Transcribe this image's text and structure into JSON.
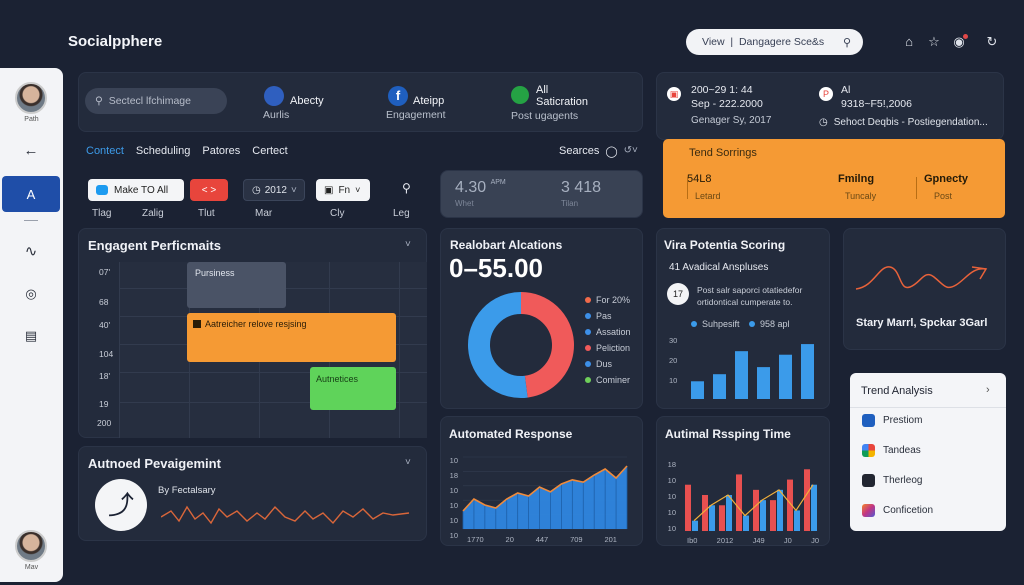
{
  "app": {
    "brand": "Socialpphere"
  },
  "header": {
    "search_text": "View  |  Dangagere Sce&s",
    "icons": [
      "home-icon",
      "star-icon",
      "notification-icon",
      "refresh-icon"
    ]
  },
  "sidebar": {
    "user_top": "Path",
    "user_bottom": "Mav",
    "items": [
      "back-arrow-icon",
      "analytics-icon",
      "wave-icon",
      "broadcast-icon",
      "clipboard-icon"
    ]
  },
  "topbar": {
    "search_placeholder": "Sectecl lfchimage",
    "accounts": [
      {
        "line1": "Abecty",
        "line2": "Aurlis"
      },
      {
        "line1": "Ateipp",
        "line2": "Engagement"
      },
      {
        "line1": "All",
        "line1b": "Saticration",
        "line2": "Post ugagents"
      }
    ]
  },
  "right_top": {
    "left": {
      "line1": "200~29 1: 44",
      "line2": "Sep - 222.2000",
      "line3": "Genager Sy, 2017"
    },
    "right": {
      "line1": "Al",
      "line2": "9318~F5!,2006",
      "line3": "Sehoct Deqbis - Postiegendation..."
    }
  },
  "tabs": {
    "items": [
      "Contect",
      "Scheduling",
      "Patores",
      "Certect"
    ],
    "active": 0,
    "searches_label": "Searces"
  },
  "filters": {
    "twitter_chip": "Make TO All",
    "nav_chip": "<  >",
    "date_value": "2012",
    "fn_chip": "Fn",
    "days": [
      "Tlag",
      "Zalig",
      "Tlut",
      "Mar",
      "Cly",
      "Leg"
    ]
  },
  "stats_mini": {
    "a_value": "4.30",
    "a_unit": "APM",
    "a_sub": "Whet",
    "b_value": "3 418",
    "b_sub": "Tilan"
  },
  "trend_scorings": {
    "title": "Tend Sorrings",
    "cols": [
      {
        "value": "54L8",
        "label": "Letard"
      },
      {
        "value": "Fmilng",
        "label": "Tuncaly"
      },
      {
        "value": "Gpnecty",
        "label": "Post"
      }
    ]
  },
  "engagement": {
    "title": "Engagent Perficmaits",
    "row_labels": [
      "07'",
      "68",
      "40'",
      "104",
      "18'",
      "19",
      "200"
    ],
    "blocks": [
      {
        "label": "Pursiness",
        "color": "#4a5366"
      },
      {
        "label": "Aatreicher relove resjsing",
        "color": "#f59a34"
      },
      {
        "label": "Autnetices",
        "color": "#5fd35a"
      }
    ]
  },
  "allocations": {
    "title": "Realobart Alcations",
    "big_value": "0–55.00",
    "legend": [
      {
        "label": "For 20%",
        "color": "#f16a4a"
      },
      {
        "label": "Pas",
        "color": "#3d8fe8"
      },
      {
        "label": "Assation",
        "color": "#3d8fe8"
      },
      {
        "label": "Peliction",
        "color": "#f05a5a"
      },
      {
        "label": "Dus",
        "color": "#3d8fe8"
      },
      {
        "label": "Cominer",
        "color": "#6fcf5a"
      }
    ],
    "donut": [
      {
        "value": 48,
        "color": "#f05a5a"
      },
      {
        "value": 52,
        "color": "#3b9bea"
      }
    ]
  },
  "viral": {
    "title": "Vira Potentia Scoring",
    "subtitle": "41 Avadical Anspluses",
    "badge": "17",
    "desc1": "Post salr saporci otatiedefor",
    "desc2": "ortidontical cumperate to.",
    "legend1": "Suhpesift",
    "legend2": "958 apl",
    "y_labels": [
      "30",
      "20",
      "10"
    ]
  },
  "chart_viral": {
    "type": "bar",
    "values": [
      10,
      14,
      27,
      18,
      25,
      31
    ],
    "ylim": [
      0,
      35
    ]
  },
  "story": {
    "label": "Stary Marrl, Spckar 3Garl"
  },
  "trend_analysis": {
    "title": "Trend Analysis",
    "items": [
      {
        "label": "Prestiom",
        "color": "#1f5fbf"
      },
      {
        "label": "Tandeas",
        "color": "#e8453c"
      },
      {
        "label": "Therleog",
        "color": "#222631"
      },
      {
        "label": "Conficetion",
        "color": "#c13584"
      }
    ]
  },
  "auto_engagement": {
    "title": "Autnoed Pevaigemint",
    "label": "By Fectalsary"
  },
  "auto_response": {
    "title": "Automated Response",
    "y_labels": [
      "10",
      "18",
      "10",
      "10",
      "10",
      "10"
    ],
    "x_labels": [
      "1770",
      "20",
      "447",
      "709",
      "201"
    ],
    "x_sub": "W"
  },
  "chart_auto_response": {
    "type": "area",
    "values": [
      3,
      5,
      4,
      3.5,
      5,
      6,
      5.5,
      7,
      6.2,
      7.5,
      8.2,
      7.8,
      9,
      10,
      8.5,
      10.5
    ],
    "ylim": [
      0,
      12
    ]
  },
  "timing": {
    "title": "Autimal Rssping Time",
    "y_labels": [
      "18",
      "10",
      "10",
      "10",
      "10"
    ],
    "x_labels": [
      "Ib0",
      "2012",
      "J49",
      "J0",
      "J0"
    ]
  },
  "chart_timing": {
    "type": "bar",
    "series": [
      {
        "name": "",
        "values": [
          9,
          7,
          5,
          11,
          8,
          6,
          10,
          12
        ],
        "color": "#e85050"
      },
      {
        "name": "",
        "values": [
          2,
          5,
          7,
          3,
          6,
          8,
          4,
          9
        ],
        "color": "#3b9bea"
      }
    ],
    "ylim": [
      0,
      14
    ]
  }
}
